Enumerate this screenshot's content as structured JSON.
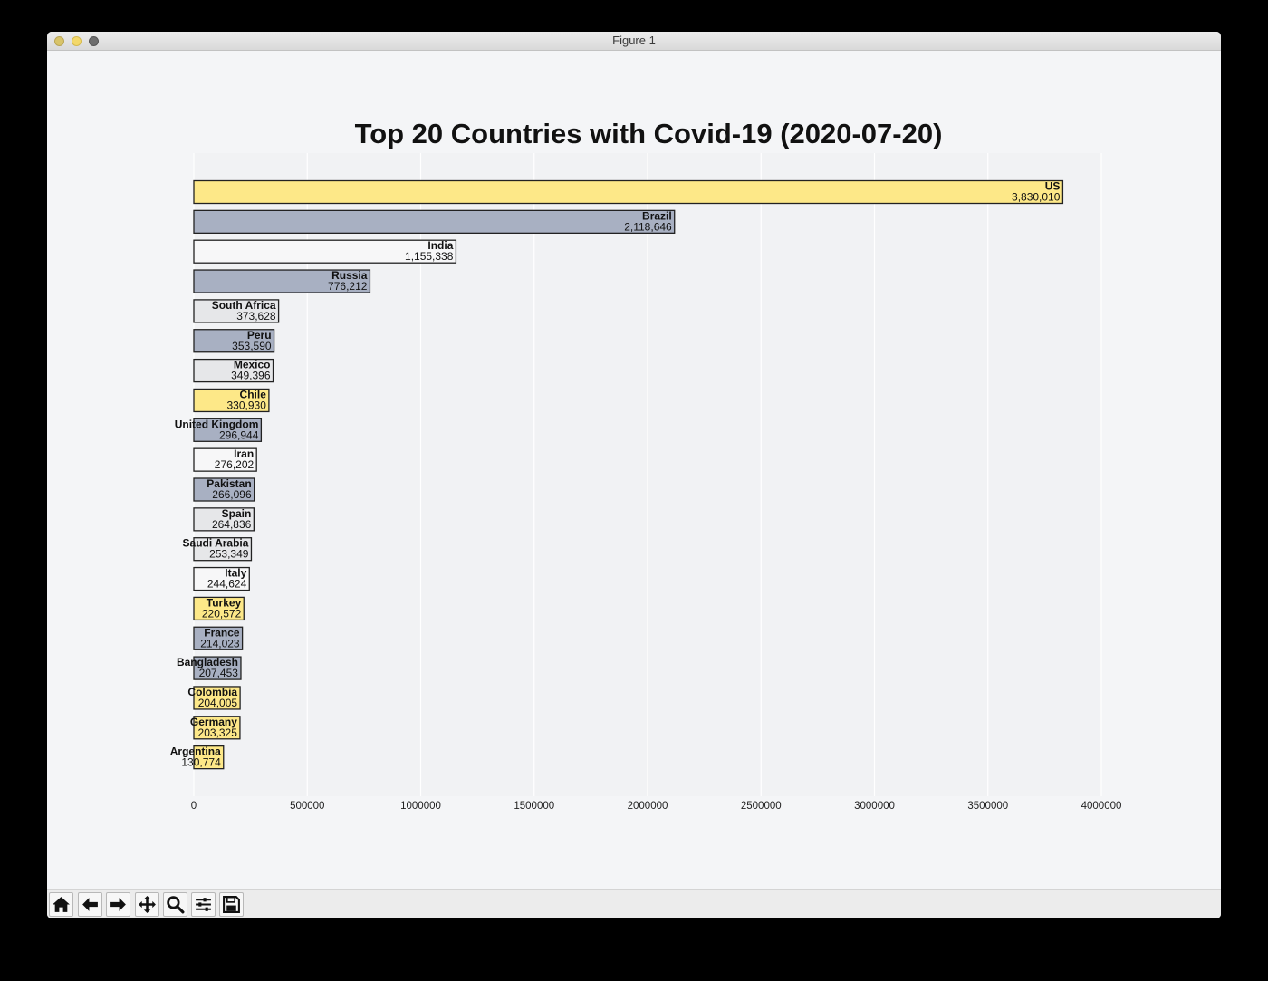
{
  "window": {
    "title": "Figure 1"
  },
  "toolbar": {
    "buttons": [
      {
        "icon": "home-icon"
      },
      {
        "icon": "back-arrow-icon"
      },
      {
        "icon": "forward-arrow-icon"
      },
      {
        "icon": "pan-move-icon"
      },
      {
        "icon": "zoom-magnifier-icon"
      },
      {
        "icon": "configure-subplots-icon"
      },
      {
        "icon": "save-floppy-icon"
      }
    ]
  },
  "colors": {
    "yellow": "#fde888",
    "slate": "#a8b0c2",
    "light": "#e6e7e9",
    "white": "#f7f7f8",
    "edge": "#222222"
  },
  "chart_data": {
    "type": "bar",
    "orientation": "horizontal",
    "title": "Top 20 Countries with Covid-19 (2020-07-20)",
    "xlabel": "",
    "ylabel": "",
    "xlim": [
      0,
      4000000
    ],
    "xticks": [
      0,
      500000,
      1000000,
      1500000,
      2000000,
      2500000,
      3000000,
      3500000,
      4000000
    ],
    "xtick_labels": [
      "0",
      "500000",
      "1000000",
      "1500000",
      "2000000",
      "2500000",
      "3000000",
      "3500000",
      "4000000"
    ],
    "grid": true,
    "categories": [
      "US",
      "Brazil",
      "India",
      "Russia",
      "South Africa",
      "Peru",
      "Mexico",
      "Chile",
      "United Kingdom",
      "Iran",
      "Pakistan",
      "Spain",
      "Saudi Arabia",
      "Italy",
      "Turkey",
      "France",
      "Bangladesh",
      "Colombia",
      "Germany",
      "Argentina"
    ],
    "values": [
      3830010,
      2118646,
      1155338,
      776212,
      373628,
      353590,
      349396,
      330930,
      296944,
      276202,
      266096,
      264836,
      253349,
      244624,
      220572,
      214023,
      207453,
      204005,
      203325,
      130774
    ],
    "value_labels": [
      "3,830,010",
      "2,118,646",
      "1,155,338",
      "776,212",
      "373,628",
      "353,590",
      "349,396",
      "330,930",
      "296,944",
      "276,202",
      "266,096",
      "264,836",
      "253,349",
      "244,624",
      "220,572",
      "214,023",
      "207,453",
      "204,005",
      "203,325",
      "130,774"
    ],
    "bar_colors": [
      "yellow",
      "slate",
      "white",
      "slate",
      "light",
      "slate",
      "light",
      "yellow",
      "slate",
      "white",
      "slate",
      "light",
      "light",
      "white",
      "yellow",
      "slate",
      "slate",
      "yellow",
      "yellow",
      "yellow"
    ]
  }
}
